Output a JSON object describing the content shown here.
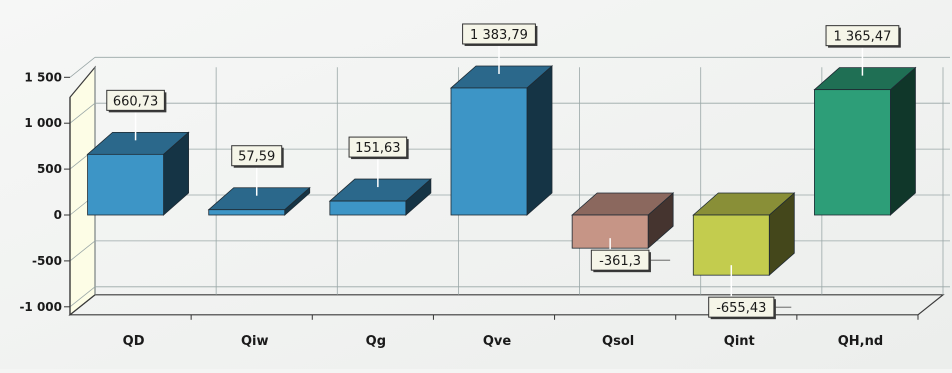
{
  "chart_data": {
    "type": "bar",
    "title": "",
    "xlabel": "",
    "ylabel": "",
    "categories": [
      "QD",
      "Qiw",
      "Qg",
      "Qve",
      "Qsol",
      "Qint",
      "QH,nd"
    ],
    "values": [
      660.73,
      57.59,
      151.63,
      1383.79,
      -361.3,
      -655.43,
      1365.47
    ],
    "value_labels": [
      "660,73",
      "57,59",
      "151,63",
      "1 383,79",
      "-361,3",
      "-655,43",
      "1 365,47"
    ],
    "y_ticks": [
      {
        "value": 1500,
        "label": "1 500"
      },
      {
        "value": 1000,
        "label": "1 000"
      },
      {
        "value": 500,
        "label": "500"
      },
      {
        "value": 0,
        "label": "0"
      },
      {
        "value": -500,
        "label": "-500"
      },
      {
        "value": -1000,
        "label": "-1 000"
      }
    ],
    "ylim": [
      -1000,
      1500
    ],
    "grid": true,
    "legend": "none",
    "bar_colors": [
      "#3d95c6",
      "#3d95c6",
      "#3d95c6",
      "#3d95c6",
      "#c69586",
      "#c3cc4e",
      "#2d9e78"
    ],
    "colors": {
      "side_wall": "#fdfde6",
      "grid": "#9aa7a7"
    }
  }
}
